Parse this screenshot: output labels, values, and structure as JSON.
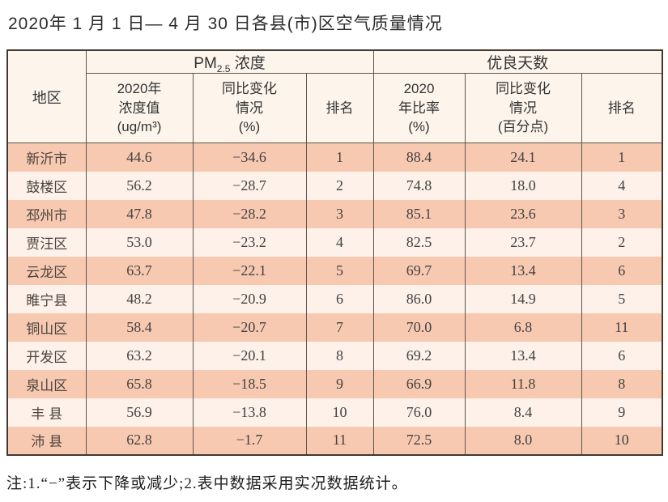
{
  "title": "2020年 1 月 1 日— 4 月 30 日各县(市)区空气质量情况",
  "note": "注:1.“−”表示下降或减少;2.表中数据采用实况数据统计。",
  "colors": {
    "row_odd": "#f8c9b1",
    "row_even": "#fdf1e9",
    "header_bg": "#fdf5ec",
    "border_outer": "#41382f",
    "border_inner": "#5e544c"
  },
  "header": {
    "region": "地区",
    "pm25_group": {
      "prefix": "PM",
      "sub": "2.5",
      "suffix": " 浓度"
    },
    "good_group": "优良天数",
    "sub": {
      "pm25_value": "2020年\n浓度值\n(ug/m³)",
      "pm25_change": "同比变化\n情况\n(%)",
      "pm25_rank": "排名",
      "good_rate": "2020\n年比率\n(%)",
      "good_change": "同比变化\n情况\n(百分点)",
      "good_rank": "排名"
    }
  },
  "chart_data": {
    "type": "table",
    "title": "2020年 1 月 1 日— 4 月 30 日各县(市)区空气质量情况",
    "column_groups": [
      {
        "label": "地区",
        "span": 1
      },
      {
        "label": "PM2.5 浓度",
        "span": 3
      },
      {
        "label": "优良天数",
        "span": 3
      }
    ],
    "columns": [
      "地区",
      "2020年浓度值(ug/m³)",
      "同比变化情况(%)",
      "排名",
      "2020年比率(%)",
      "同比变化情况(百分点)",
      "排名"
    ],
    "rows": [
      [
        "新沂市",
        "44.6",
        "−34.6",
        "1",
        "88.4",
        "24.1",
        "1"
      ],
      [
        "鼓楼区",
        "56.2",
        "−28.7",
        "2",
        "74.8",
        "18.0",
        "4"
      ],
      [
        "邳州市",
        "47.8",
        "−28.2",
        "3",
        "85.1",
        "23.6",
        "3"
      ],
      [
        "贾汪区",
        "53.0",
        "−23.2",
        "4",
        "82.5",
        "23.7",
        "2"
      ],
      [
        "云龙区",
        "63.7",
        "−22.1",
        "5",
        "69.7",
        "13.4",
        "6"
      ],
      [
        "睢宁县",
        "48.2",
        "−20.9",
        "6",
        "86.0",
        "14.9",
        "5"
      ],
      [
        "铜山区",
        "58.4",
        "−20.7",
        "7",
        "70.0",
        "6.8",
        "11"
      ],
      [
        "开发区",
        "63.2",
        "−20.1",
        "8",
        "69.2",
        "13.4",
        "6"
      ],
      [
        "泉山区",
        "65.8",
        "−18.5",
        "9",
        "66.9",
        "11.8",
        "8"
      ],
      [
        "丰 县",
        "56.9",
        "−13.8",
        "10",
        "76.0",
        "8.4",
        "9"
      ],
      [
        "沛 县",
        "62.8",
        "−1.7",
        "11",
        "72.5",
        "8.0",
        "10"
      ]
    ]
  }
}
